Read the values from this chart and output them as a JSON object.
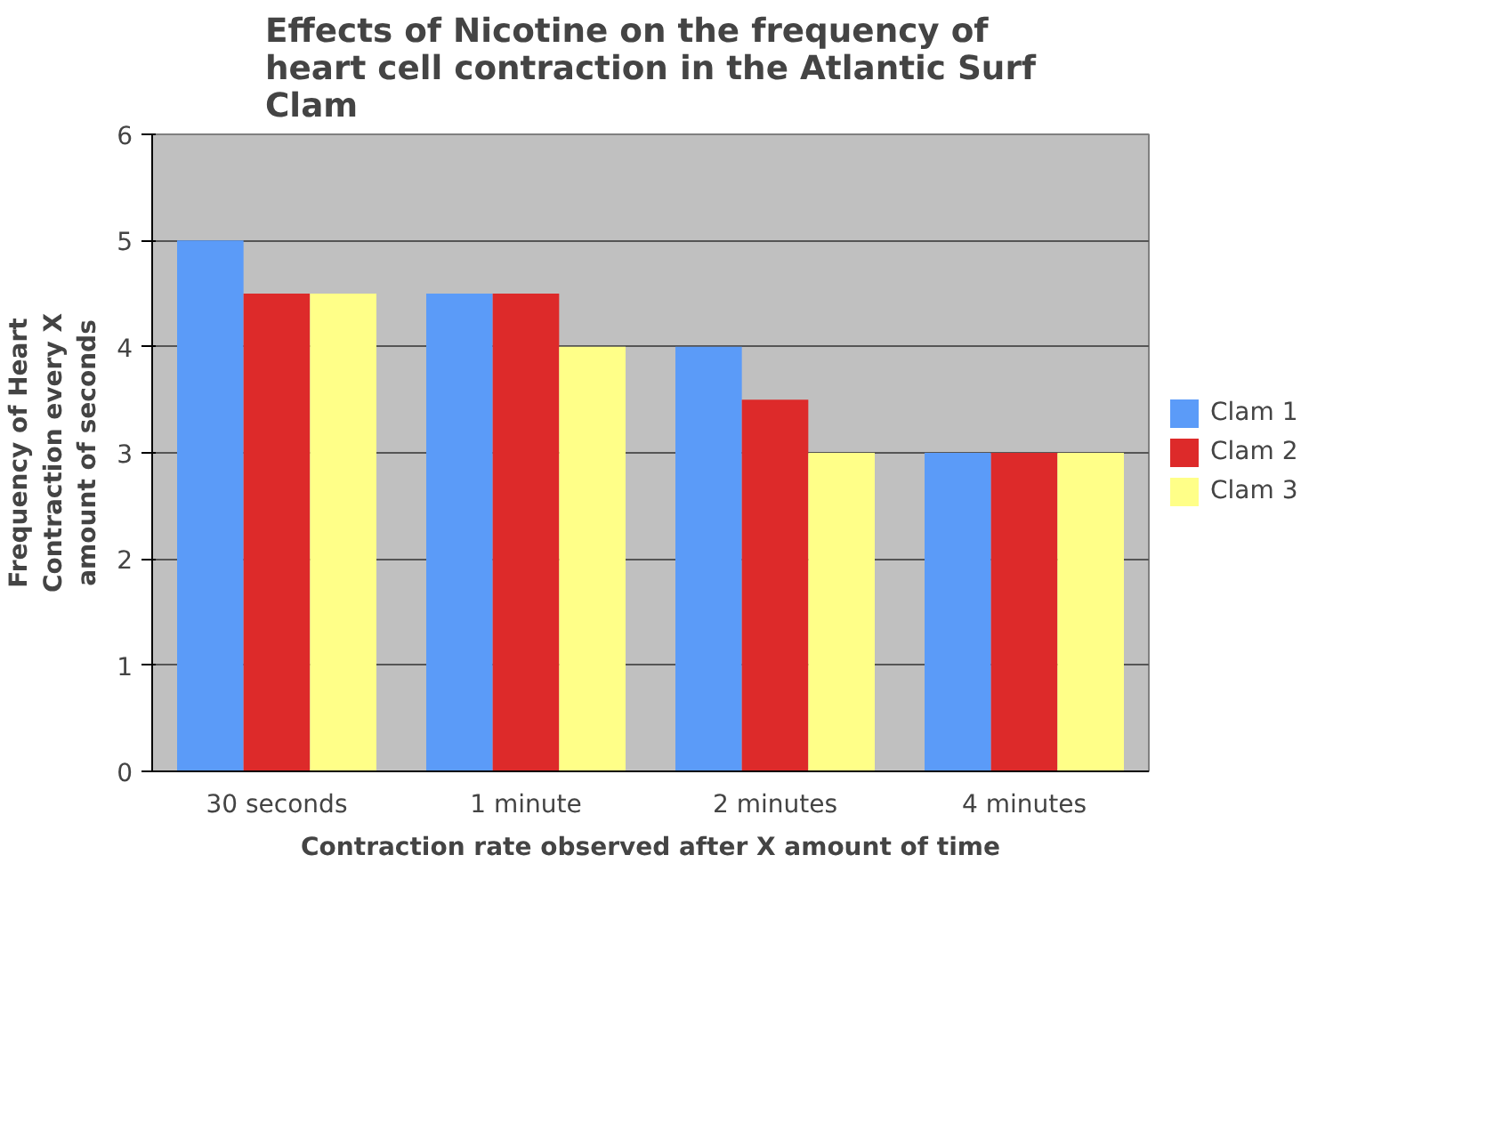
{
  "chart_data": {
    "type": "bar",
    "title": "Effects of Nicotine on the frequency of heart cell contraction in the Atlantic Surf Clam",
    "xlabel": "Contraction rate observed after X amount of time",
    "ylabel": "Frequency of Heart Contraction every X amount of seconds",
    "categories": [
      "30 seconds",
      "1 minute",
      "2 minutes",
      "4 minutes"
    ],
    "series": [
      {
        "name": "Clam 1",
        "color": "#5b9bf8",
        "values": [
          5,
          4.5,
          4,
          3
        ]
      },
      {
        "name": "Clam 2",
        "color": "#dd2a2a",
        "values": [
          4.5,
          4.5,
          3.5,
          3
        ]
      },
      {
        "name": "Clam 3",
        "color": "#ffff88",
        "values": [
          4.5,
          4,
          3,
          3
        ]
      }
    ],
    "ylim": [
      0,
      6
    ],
    "yticks": [
      0,
      1,
      2,
      3,
      4,
      5,
      6
    ],
    "grid": "y",
    "legend": "right"
  }
}
